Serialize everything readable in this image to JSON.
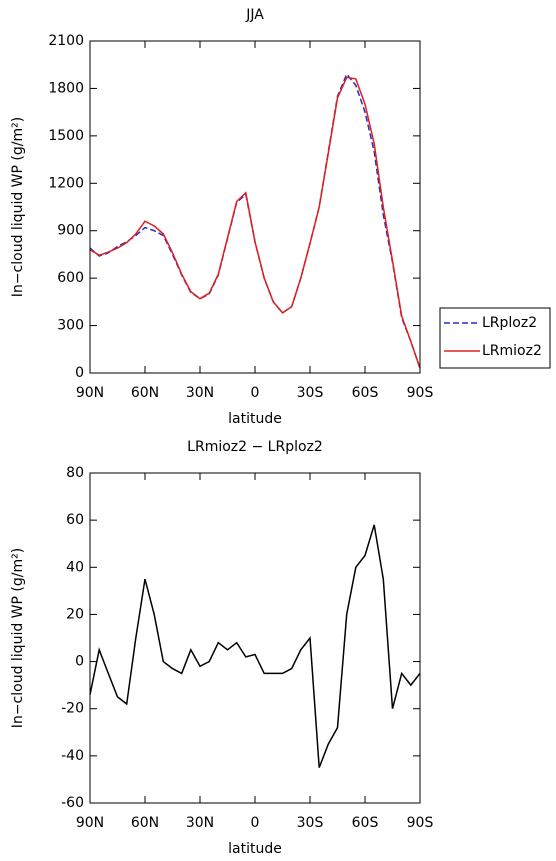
{
  "chart_data": [
    {
      "type": "line",
      "title": "JJA",
      "xlabel": "latitude",
      "ylabel": "In−cloud liquid WP (g/m²)",
      "x": [
        90,
        85,
        80,
        75,
        70,
        65,
        60,
        55,
        50,
        45,
        40,
        35,
        30,
        25,
        20,
        15,
        10,
        5,
        0,
        -5,
        -10,
        -15,
        -20,
        -25,
        -30,
        -35,
        -40,
        -45,
        -50,
        -55,
        -60,
        -65,
        -70,
        -75,
        -80,
        -85,
        -90
      ],
      "series": [
        {
          "name": "LRploz2",
          "color": "#1f2fd0",
          "line_style": "dashed",
          "values": [
            790,
            740,
            760,
            800,
            830,
            870,
            920,
            900,
            870,
            750,
            620,
            510,
            470,
            500,
            620,
            850,
            1080,
            1130,
            830,
            600,
            450,
            380,
            420,
            600,
            820,
            1050,
            1400,
            1750,
            1890,
            1820,
            1650,
            1400,
            1000,
            700,
            350,
            200,
            30
          ]
        },
        {
          "name": "LRmioz2",
          "color": "#e0201b",
          "line_style": "solid",
          "values": [
            780,
            745,
            765,
            790,
            825,
            880,
            960,
            930,
            880,
            760,
            625,
            515,
            470,
            505,
            625,
            855,
            1085,
            1140,
            830,
            600,
            450,
            380,
            420,
            600,
            820,
            1050,
            1390,
            1740,
            1870,
            1860,
            1700,
            1450,
            1050,
            710,
            360,
            200,
            30
          ]
        }
      ],
      "xlim": [
        90,
        -90
      ],
      "xticks": [
        {
          "value": 90,
          "label": "90N"
        },
        {
          "value": 60,
          "label": "60N"
        },
        {
          "value": 30,
          "label": "30N"
        },
        0,
        {
          "value": -30,
          "label": "30S"
        },
        {
          "value": -60,
          "label": "60S"
        },
        {
          "value": -90,
          "label": "90S"
        }
      ],
      "ylim": [
        0,
        2100
      ],
      "yticks": [
        0,
        300,
        600,
        900,
        1200,
        1500,
        1800,
        2100
      ],
      "legend": "right"
    },
    {
      "type": "line",
      "title": "LRmioz2 − LRploz2",
      "xlabel": "latitude",
      "ylabel": "In−cloud liquid WP (g/m²)",
      "x": [
        90,
        85,
        80,
        75,
        70,
        65,
        60,
        55,
        50,
        45,
        40,
        35,
        30,
        25,
        20,
        15,
        10,
        5,
        0,
        -5,
        -10,
        -15,
        -20,
        -25,
        -30,
        -35,
        -40,
        -45,
        -50,
        -55,
        -60,
        -65,
        -70,
        -75,
        -80,
        -85,
        -90
      ],
      "series": [
        {
          "color": "#000000",
          "line_style": "solid",
          "values": [
            -14,
            5,
            -5,
            -15,
            -18,
            10,
            35,
            20,
            0,
            -3,
            -5,
            5,
            -2,
            0,
            8,
            5,
            8,
            2,
            3,
            -5,
            -5,
            -5,
            -3,
            5,
            10,
            -45,
            -35,
            -28,
            20,
            40,
            45,
            58,
            35,
            -20,
            -5,
            -10,
            -5
          ]
        }
      ],
      "xlim": [
        90,
        -90
      ],
      "xticks": [
        {
          "value": 90,
          "label": "90N"
        },
        {
          "value": 60,
          "label": "60N"
        },
        {
          "value": 30,
          "label": "30N"
        },
        0,
        {
          "value": -30,
          "label": "30S"
        },
        {
          "value": -60,
          "label": "60S"
        },
        {
          "value": -90,
          "label": "90S"
        }
      ],
      "ylim": [
        -60,
        80
      ],
      "yticks": [
        -60,
        -40,
        -20,
        0,
        20,
        40,
        60,
        80
      ]
    }
  ]
}
